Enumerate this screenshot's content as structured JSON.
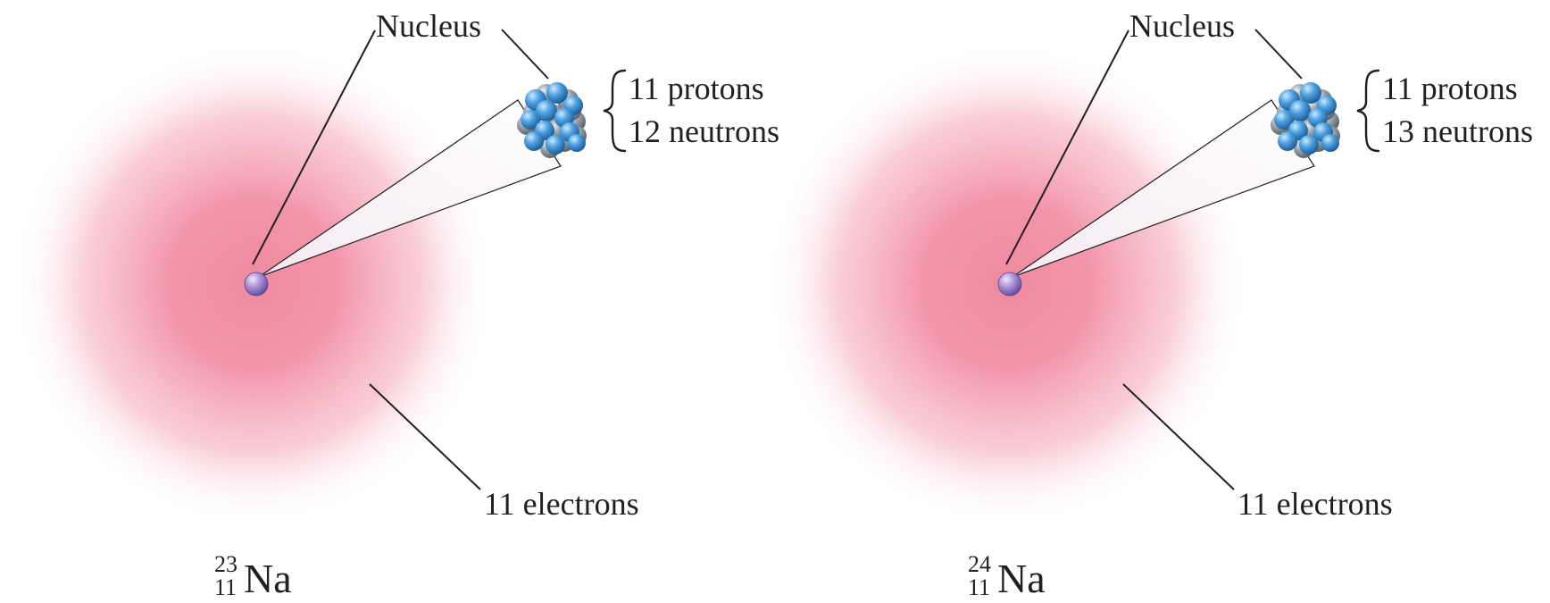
{
  "atoms": [
    {
      "nucleus_label": "Nucleus",
      "protons_label": "11 protons",
      "neutrons_label": "12 neutrons",
      "electrons_label": "11 electrons",
      "isotope": {
        "mass_number": "23",
        "atomic_number": "11",
        "symbol": "Na"
      }
    },
    {
      "nucleus_label": "Nucleus",
      "protons_label": "11 protons",
      "neutrons_label": "13 neutrons",
      "electrons_label": "11 electrons",
      "isotope": {
        "mass_number": "24",
        "atomic_number": "11",
        "symbol": "Na"
      }
    }
  ],
  "colors": {
    "electron_cloud": "#f08aa0",
    "proton": "#4fa3e3",
    "neutron": "#9aa4aa",
    "nucleus_dot": "#a98fd4",
    "leader_line": "#231f20"
  }
}
